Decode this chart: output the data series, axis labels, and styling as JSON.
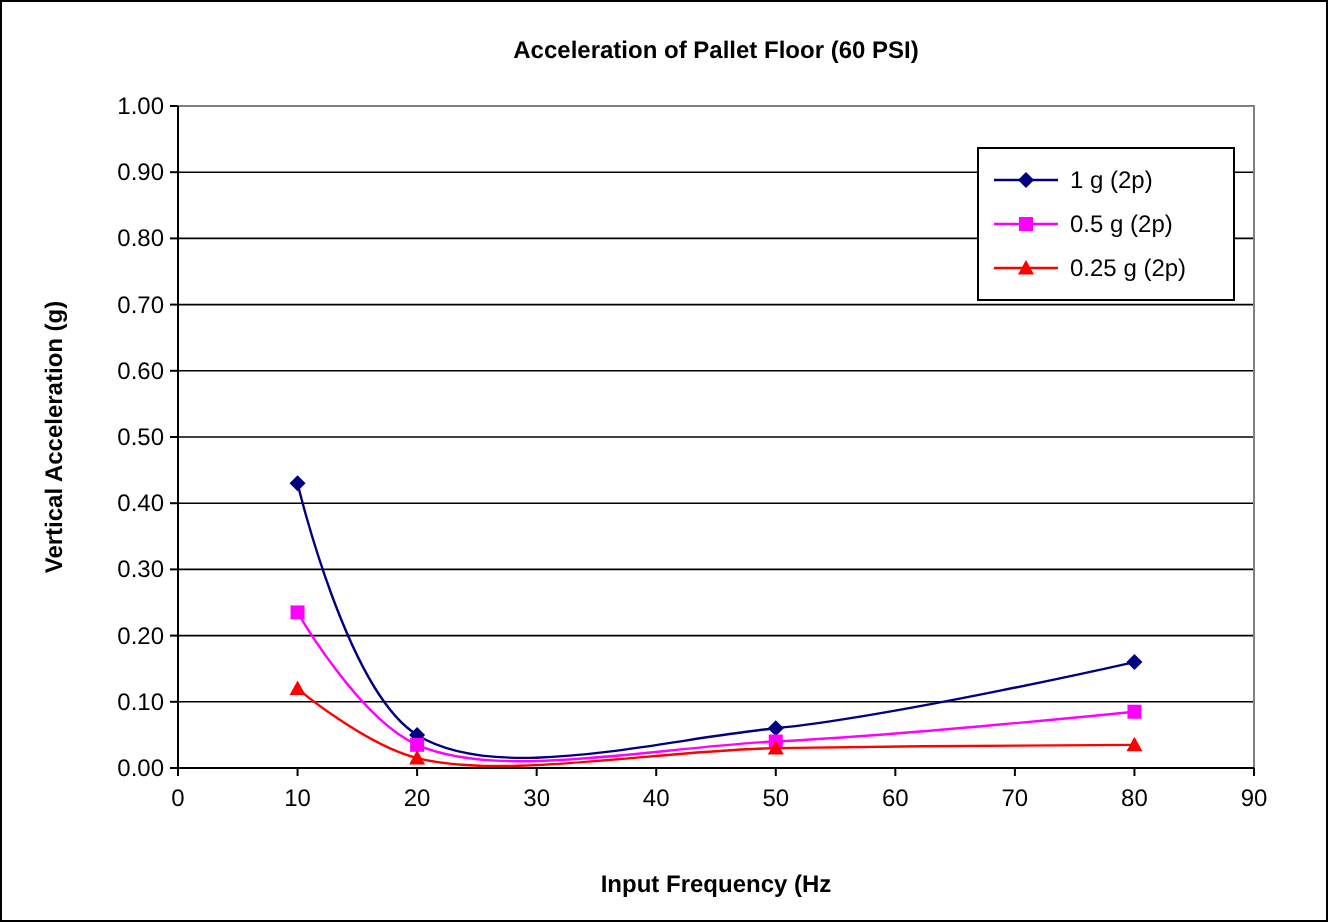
{
  "chart_data": {
    "type": "line",
    "title": "Acceleration of Pallet Floor (60 PSI)",
    "xlabel": "Input Frequency (Hz",
    "ylabel": "Vertical Acceleration (g)",
    "x": [
      10,
      20,
      50,
      80
    ],
    "series": [
      {
        "name": "1 g (2p)",
        "color": "#000080",
        "marker": "diamond",
        "values": [
          0.43,
          0.05,
          0.06,
          0.16
        ]
      },
      {
        "name": "0.5 g (2p)",
        "color": "#ff00ff",
        "marker": "square",
        "values": [
          0.235,
          0.035,
          0.04,
          0.085
        ]
      },
      {
        "name": "0.25 g (2p)",
        "color": "#ff0000",
        "marker": "triangle",
        "values": [
          0.12,
          0.015,
          0.03,
          0.035
        ]
      }
    ],
    "xlim": [
      0,
      90
    ],
    "xticks": [
      0,
      10,
      20,
      30,
      40,
      50,
      60,
      70,
      80,
      90
    ],
    "ylim": [
      0,
      1
    ],
    "yticks": [
      {
        "value": 0,
        "label": "0.00"
      },
      {
        "value": 0.1,
        "label": "0.10"
      },
      {
        "value": 0.2,
        "label": "0.20"
      },
      {
        "value": 0.3,
        "label": "0.30"
      },
      {
        "value": 0.4,
        "label": "0.40"
      },
      {
        "value": 0.5,
        "label": "0.50"
      },
      {
        "value": 0.6,
        "label": "0.60"
      },
      {
        "value": 0.7,
        "label": "0.70"
      },
      {
        "value": 0.8,
        "label": "0.80"
      },
      {
        "value": 0.9,
        "label": "0.90"
      },
      {
        "value": 1,
        "label": "1.00"
      }
    ],
    "grid": "y",
    "legend": "top right",
    "line_style": "solid"
  }
}
